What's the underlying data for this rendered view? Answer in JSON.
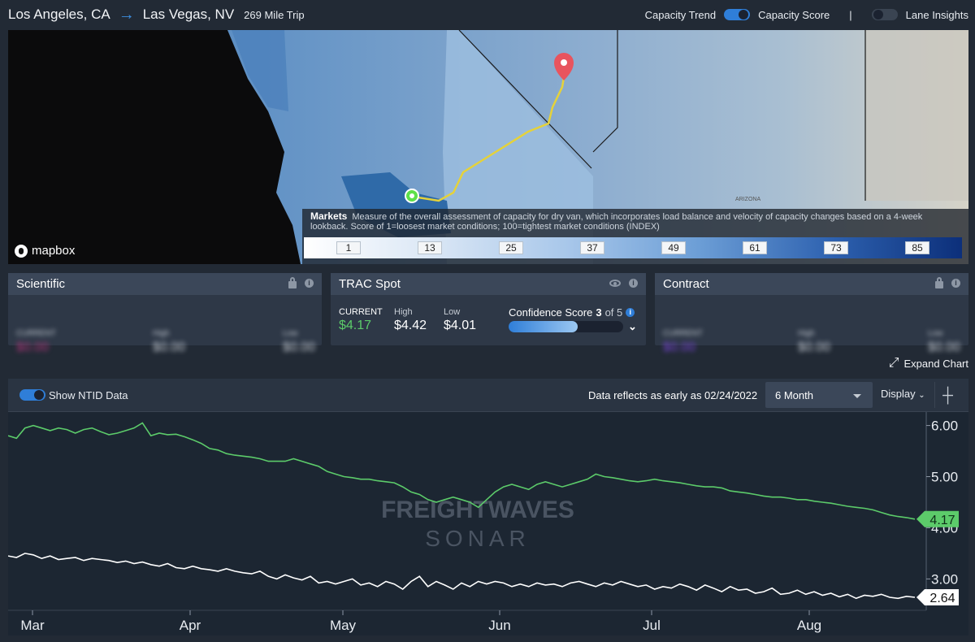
{
  "header": {
    "origin": "Los Angeles, CA",
    "destination": "Las Vegas, NV",
    "trip": "269 Mile Trip",
    "toggles": [
      {
        "label": "Capacity Trend",
        "on": true
      },
      {
        "label": "Capacity Score"
      },
      {
        "label": "Lane Insights",
        "on": false
      }
    ],
    "separator": "|"
  },
  "map": {
    "markets_title": "Markets",
    "markets_desc": "Measure of the overall assessment of capacity for dry van, which incorporates load balance and velocity of capacity changes based on a 4-week lookback. Score of 1=loosest market conditions; 100=tightest market conditions (INDEX)",
    "scale": [
      "1",
      "13",
      "25",
      "37",
      "49",
      "61",
      "73",
      "85"
    ],
    "state_label": "ARIZONA",
    "attribution": "mapbox"
  },
  "cards": {
    "scientific": {
      "title": "Scientific",
      "current_label": "CURRENT",
      "current": "$0.00",
      "high_label": "High",
      "high": "$0.00",
      "low_label": "Low",
      "low": "$0.00"
    },
    "trac": {
      "title": "TRAC Spot",
      "current_label": "CURRENT",
      "current": "$4.17",
      "high_label": "High",
      "high": "$4.42",
      "low_label": "Low",
      "low": "$4.01",
      "confidence_label": "Confidence Score",
      "confidence_value": "3",
      "confidence_of": "of 5",
      "confidence_fraction": 0.6
    },
    "contract": {
      "title": "Contract",
      "current_label": "CURRENT",
      "current": "$0.00",
      "high_label": "High",
      "high": "$0.00",
      "low_label": "Low",
      "low": "$0.00"
    }
  },
  "expand_label": "Expand Chart",
  "toolbar": {
    "ntid_label": "Show NTID Data",
    "data_note": "Data reflects as early as 02/24/2022",
    "range": "6 Month",
    "display_label": "Display"
  },
  "chart_data": {
    "type": "line",
    "x_labels": [
      "Mar",
      "Apr",
      "May",
      "Jun",
      "Jul",
      "Aug"
    ],
    "y_ticks": [
      "6.00",
      "5.00",
      "4.00",
      "3.00"
    ],
    "ylim": [
      2.45,
      6.2
    ],
    "watermark": [
      "FREIGHTWAVES",
      "SONAR"
    ],
    "series": [
      {
        "color": "#5ccb6a",
        "last_label": "4.17",
        "values": [
          5.8,
          5.75,
          5.95,
          6.0,
          5.95,
          5.9,
          5.95,
          5.92,
          5.85,
          5.92,
          5.95,
          5.88,
          5.82,
          5.85,
          5.9,
          5.95,
          6.05,
          5.8,
          5.85,
          5.82,
          5.83,
          5.78,
          5.72,
          5.65,
          5.55,
          5.52,
          5.45,
          5.42,
          5.4,
          5.38,
          5.35,
          5.3,
          5.3,
          5.3,
          5.35,
          5.3,
          5.25,
          5.2,
          5.1,
          5.05,
          5.0,
          4.98,
          4.95,
          4.95,
          4.92,
          4.9,
          4.88,
          4.8,
          4.7,
          4.65,
          4.55,
          4.5,
          4.55,
          4.6,
          4.55,
          4.5,
          4.4,
          4.55,
          4.7,
          4.8,
          4.85,
          4.8,
          4.75,
          4.85,
          4.9,
          4.85,
          4.8,
          4.85,
          4.9,
          4.95,
          5.05,
          5.0,
          4.98,
          4.95,
          4.92,
          4.9,
          4.92,
          4.95,
          4.92,
          4.9,
          4.88,
          4.85,
          4.82,
          4.8,
          4.8,
          4.78,
          4.72,
          4.7,
          4.68,
          4.65,
          4.62,
          4.6,
          4.6,
          4.58,
          4.55,
          4.55,
          4.52,
          4.5,
          4.48,
          4.45,
          4.42,
          4.4,
          4.38,
          4.35,
          4.3,
          4.25,
          4.22,
          4.2,
          4.17
        ]
      },
      {
        "color": "#ffffff",
        "last_label": "2.64",
        "values": [
          3.45,
          3.42,
          3.5,
          3.47,
          3.4,
          3.45,
          3.38,
          3.4,
          3.42,
          3.36,
          3.4,
          3.38,
          3.36,
          3.32,
          3.35,
          3.3,
          3.33,
          3.28,
          3.25,
          3.3,
          3.22,
          3.2,
          3.25,
          3.2,
          3.18,
          3.15,
          3.2,
          3.15,
          3.12,
          3.1,
          3.15,
          3.05,
          3.0,
          3.08,
          3.02,
          2.98,
          3.05,
          2.92,
          2.95,
          2.9,
          2.95,
          3.0,
          2.88,
          2.92,
          2.85,
          2.95,
          2.9,
          2.8,
          2.95,
          3.05,
          2.85,
          2.95,
          2.88,
          2.8,
          2.92,
          2.85,
          2.95,
          2.9,
          2.95,
          2.92,
          2.85,
          2.9,
          2.85,
          2.92,
          2.88,
          2.9,
          2.85,
          2.92,
          2.95,
          2.9,
          2.85,
          2.92,
          2.88,
          2.95,
          2.9,
          2.85,
          2.88,
          2.8,
          2.85,
          2.82,
          2.9,
          2.85,
          2.78,
          2.88,
          2.82,
          2.75,
          2.85,
          2.78,
          2.8,
          2.72,
          2.75,
          2.82,
          2.7,
          2.72,
          2.78,
          2.7,
          2.75,
          2.68,
          2.72,
          2.65,
          2.7,
          2.62,
          2.68,
          2.66,
          2.7,
          2.64,
          2.62,
          2.66,
          2.64
        ]
      }
    ]
  }
}
